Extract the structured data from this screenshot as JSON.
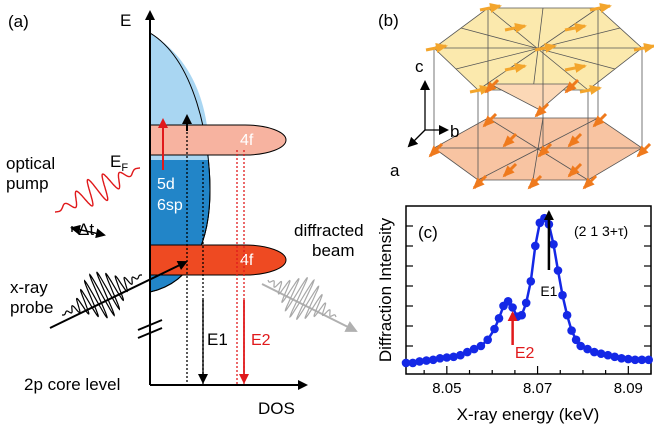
{
  "panel_a": {
    "label": "(a)",
    "axis_e": "E",
    "axis_dos": "DOS",
    "core_level": "2p core level",
    "fermi_e": "E",
    "fermi_sub": "F",
    "band_5d": "5d",
    "band_6sp": "6sp",
    "upper_4f": "4f",
    "lower_4f": "4f",
    "optical_pump": [
      "optical",
      "pump"
    ],
    "xray_probe": [
      "x-ray",
      "probe"
    ],
    "delta_t": "Δt",
    "diffracted": [
      "diffracted",
      "beam"
    ],
    "e1": "E1",
    "e2": "E2"
  },
  "panel_b": {
    "label": "(b)",
    "axis_c": "c",
    "axis_b": "b",
    "axis_a": "a"
  },
  "panel_c": {
    "label": "(c)",
    "reflection": "(2 1 3+τ)",
    "e1": "E1",
    "e2": "E2"
  },
  "colors": {
    "blue_light": "#a9d6f2",
    "blue_dark": "#2285c8",
    "salmon": "#f7b3a0",
    "red_orange": "#ee4a22",
    "red": "#e0191b",
    "curve": "#1428e6"
  },
  "chart_data": {
    "type": "line",
    "title": "",
    "xlabel": "X-ray energy (keV)",
    "ylabel": "Diffraction Intensity",
    "xlim": [
      8.041,
      8.095
    ],
    "ylim": [
      0,
      1
    ],
    "x_ticks": [
      "8.05",
      "8.07",
      "8.09"
    ],
    "grid": false,
    "series": [
      {
        "x": [
          8.041,
          8.0425,
          8.044,
          8.0455,
          8.047,
          8.0485,
          8.05,
          8.0515,
          8.053,
          8.0545,
          8.056,
          8.0575,
          8.059,
          8.0605,
          8.0615,
          8.0625,
          8.0635,
          8.0645,
          8.0655,
          8.0665,
          8.0675,
          8.0685,
          8.0695,
          8.0705,
          8.0715,
          8.0725,
          8.0735,
          8.0745,
          8.0755,
          8.0765,
          8.0775,
          8.0785,
          8.0795,
          8.081,
          8.0825,
          8.084,
          8.0855,
          8.087,
          8.0885,
          8.09,
          8.0915,
          8.093,
          8.0945
        ],
        "y": [
          0.02,
          0.02,
          0.03,
          0.035,
          0.04,
          0.05,
          0.055,
          0.06,
          0.07,
          0.09,
          0.11,
          0.13,
          0.17,
          0.24,
          0.31,
          0.39,
          0.42,
          0.38,
          0.32,
          0.33,
          0.41,
          0.55,
          0.78,
          0.93,
          0.96,
          0.92,
          0.79,
          0.62,
          0.46,
          0.33,
          0.23,
          0.17,
          0.13,
          0.11,
          0.09,
          0.08,
          0.07,
          0.06,
          0.05,
          0.045,
          0.04,
          0.04,
          0.04
        ]
      }
    ],
    "annotations": [
      {
        "text": "E1",
        "x": 8.0725,
        "color": "#000000"
      },
      {
        "text": "E2",
        "x": 8.0645,
        "color": "#e0191b"
      }
    ]
  }
}
